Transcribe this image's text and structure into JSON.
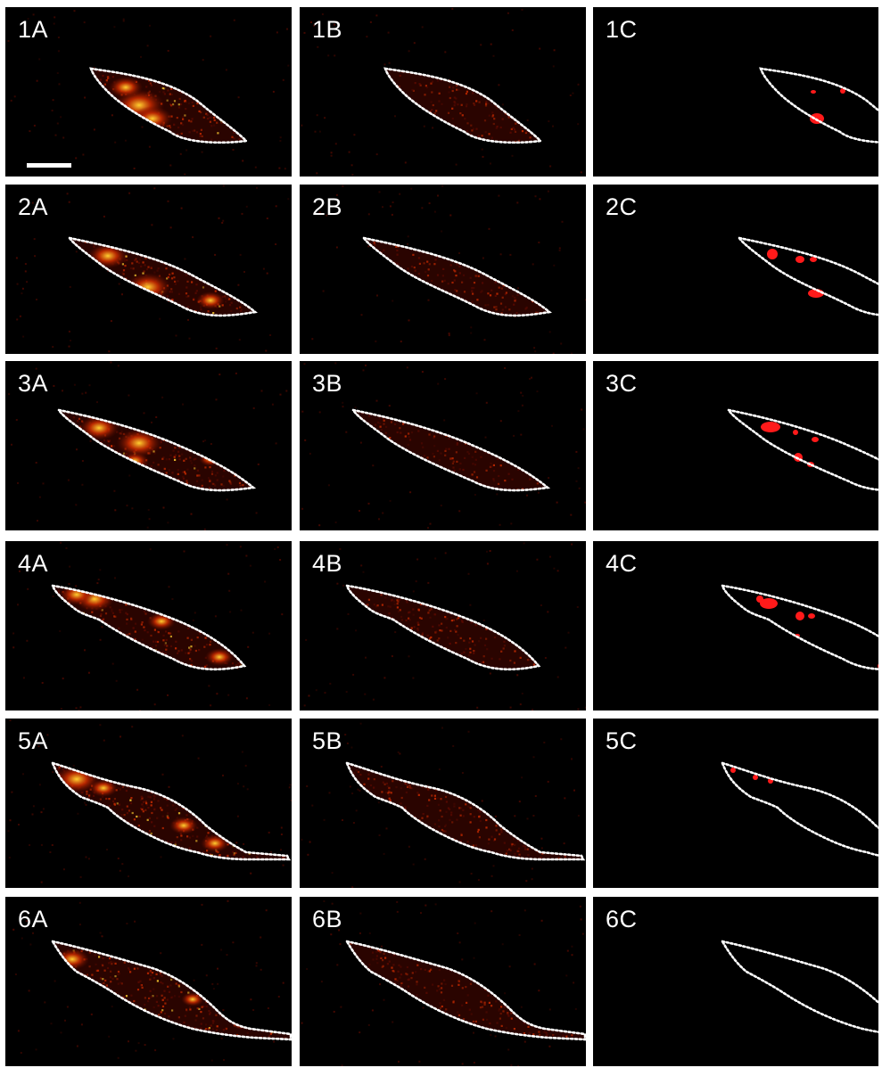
{
  "figure": {
    "rows": [
      {
        "panels": [
          {
            "label": "1A"
          },
          {
            "label": "1B"
          },
          {
            "label": "1C"
          }
        ]
      },
      {
        "panels": [
          {
            "label": "2A"
          },
          {
            "label": "2B"
          },
          {
            "label": "2C"
          }
        ]
      },
      {
        "panels": [
          {
            "label": "3A"
          },
          {
            "label": "3B"
          },
          {
            "label": "3C"
          }
        ]
      },
      {
        "panels": [
          {
            "label": "4A"
          },
          {
            "label": "4B"
          },
          {
            "label": "4C"
          }
        ]
      },
      {
        "panels": [
          {
            "label": "5A"
          },
          {
            "label": "5B"
          },
          {
            "label": "5C"
          }
        ]
      },
      {
        "panels": [
          {
            "label": "6A"
          },
          {
            "label": "6B"
          },
          {
            "label": "6C"
          }
        ]
      }
    ]
  },
  "colors": {
    "background": "#000000",
    "outline": "#ffffff",
    "signal_low": "#5a0a00",
    "signal_mid": "#c42a00",
    "signal_high": "#ffcf30",
    "mask": "#ff1a1a",
    "separator": "#ffffff"
  },
  "icons": {
    "scalebar": "scale-bar"
  }
}
